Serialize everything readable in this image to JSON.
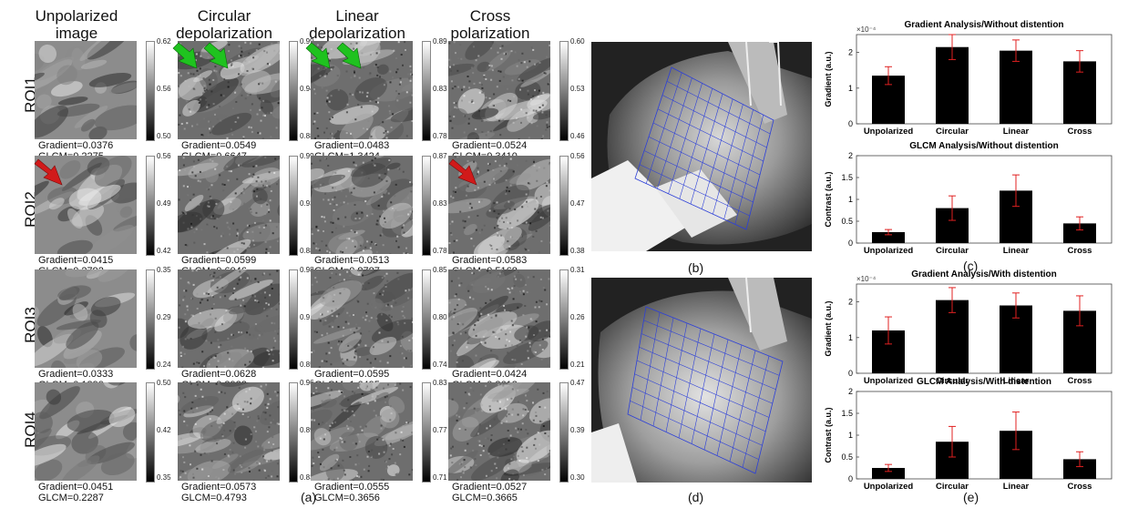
{
  "column_headers": [
    "Unpolarized\nimage",
    "Circular\ndepolarization",
    "Linear\ndepolarization",
    "Cross\npolarization"
  ],
  "row_labels": [
    "ROI1",
    "ROI2",
    "ROI3",
    "ROI4"
  ],
  "colorbar_ticks": [
    [
      [
        "0.62",
        "0.56",
        "0.50"
      ],
      [
        "0.99",
        "0.94",
        "0.88"
      ],
      [
        "0.89",
        "0.83",
        "0.78"
      ],
      [
        "0.60",
        "0.53",
        "0.46"
      ]
    ],
    [
      [
        "0.56",
        "0.49",
        "0.42"
      ],
      [
        "0.99",
        "0.93",
        "0.88"
      ],
      [
        "0.87",
        "0.83",
        "0.78"
      ],
      [
        "0.56",
        "0.47",
        "0.38"
      ]
    ],
    [
      [
        "0.35",
        "0.29",
        "0.24"
      ],
      [
        "0.98",
        "0.91",
        "0.85"
      ],
      [
        "0.85",
        "0.80",
        "0.74"
      ],
      [
        "0.31",
        "0.26",
        "0.21"
      ]
    ],
    [
      [
        "0.50",
        "0.42",
        "0.35"
      ],
      [
        "0.96",
        "0.89",
        "0.83"
      ],
      [
        "0.83",
        "0.77",
        "0.71"
      ],
      [
        "0.47",
        "0.39",
        "0.30"
      ]
    ]
  ],
  "metrics": [
    [
      [
        "Gradient=0.0376",
        "GLCM=0.2275"
      ],
      [
        "Gradient=0.0549",
        "GLCM=0.6647"
      ],
      [
        "Gradient=0.0483",
        "GLCM=1.3424"
      ],
      [
        "Gradient=0.0524",
        "GLCM=0.3410"
      ]
    ],
    [
      [
        "Gradient=0.0415",
        "GLCM=0.2792"
      ],
      [
        "Gradient=0.0599",
        "GLCM=0.6046"
      ],
      [
        "Gradient=0.0513",
        "GLCM=0.8787"
      ],
      [
        "Gradient=0.0583",
        "GLCM=0.5168"
      ]
    ],
    [
      [
        "Gradient=0.0333",
        "GLCM=0.1390"
      ],
      [
        "Gradient=0.0628",
        "GLCM=0.8923"
      ],
      [
        "Gradient=0.0595",
        "GLCM=1.6495"
      ],
      [
        "Gradient=0.0424",
        "GLCM=0.2613"
      ]
    ],
    [
      [
        "Gradient=0.0451",
        "GLCM=0.2287"
      ],
      [
        "Gradient=0.0573",
        "GLCM=0.4793"
      ],
      [
        "Gradient=0.0555",
        "GLCM=0.3656"
      ],
      [
        "Gradient=0.0527",
        "GLCM=0.3665"
      ]
    ]
  ],
  "panel_labels": {
    "a": "(a)",
    "b": "(b)",
    "c": "(c)",
    "d": "(d)",
    "e": "(e)"
  },
  "colors": {
    "bar": "#000000",
    "errorbar": "#e02020",
    "grid_overlay": "#2c3fd8",
    "arrow_green": "#1fc21f",
    "arrow_red": "#d11a1a"
  },
  "chart_data": [
    {
      "type": "bar",
      "title": "Gradient Analysis/Without distention",
      "ylabel": "Gradient (a.u.)",
      "exponent_label": "×10⁻⁴",
      "categories": [
        "Unpolarized",
        "Circular",
        "Linear",
        "Cross"
      ],
      "values": [
        1.35,
        2.15,
        2.05,
        1.75
      ],
      "errors": [
        0.25,
        0.35,
        0.3,
        0.3
      ],
      "ylim": [
        0,
        2.5
      ],
      "yticks": [
        "0",
        "1",
        "2"
      ],
      "ytick_values": [
        0,
        1,
        2
      ]
    },
    {
      "type": "bar",
      "title": "GLCM Analysis/Without distention",
      "ylabel": "Contrast (a.u.)",
      "exponent_label": "",
      "categories": [
        "Unpolarized",
        "Circular",
        "Linear",
        "Cross"
      ],
      "values": [
        0.25,
        0.8,
        1.2,
        0.45
      ],
      "errors": [
        0.06,
        0.28,
        0.36,
        0.15
      ],
      "ylim": [
        0,
        2
      ],
      "yticks": [
        "0",
        "0.5",
        "1",
        "1.5",
        "2"
      ],
      "ytick_values": [
        0,
        0.5,
        1,
        1.5,
        2
      ]
    },
    {
      "type": "bar",
      "title": "Gradient Analysis/With distention",
      "ylabel": "Gradient (a.u.)",
      "exponent_label": "×10⁻⁴",
      "categories": [
        "Unpolarized",
        "Circular",
        "Linear",
        "Cross"
      ],
      "values": [
        1.2,
        2.05,
        1.9,
        1.75
      ],
      "errors": [
        0.38,
        0.35,
        0.35,
        0.42
      ],
      "ylim": [
        0,
        2.5
      ],
      "yticks": [
        "0",
        "1",
        "2"
      ],
      "ytick_values": [
        0,
        1,
        2
      ]
    },
    {
      "type": "bar",
      "title": "GLCM Analysis/With distention",
      "ylabel": "Contrast (a.u.)",
      "exponent_label": "",
      "categories": [
        "Unpolarized",
        "Circular",
        "Linear",
        "Cross"
      ],
      "values": [
        0.25,
        0.85,
        1.1,
        0.45
      ],
      "errors": [
        0.08,
        0.35,
        0.43,
        0.17
      ],
      "ylim": [
        0,
        2
      ],
      "yticks": [
        "0",
        "0.5",
        "1",
        "1.5",
        "2"
      ],
      "ytick_values": [
        0,
        0.5,
        1,
        1.5,
        2
      ]
    }
  ]
}
